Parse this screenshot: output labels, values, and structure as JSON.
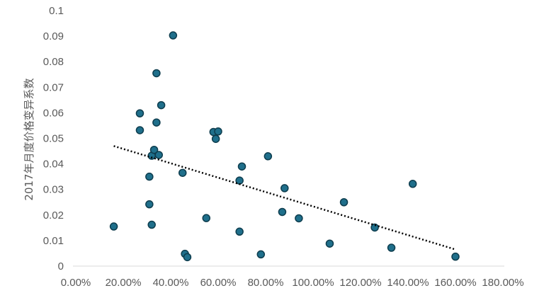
{
  "chart_data": {
    "type": "scatter",
    "title": "",
    "xlabel": "",
    "ylabel": "2017年月度价格变异系数",
    "xlim": [
      0,
      1.8
    ],
    "ylim": [
      0,
      0.1
    ],
    "x_ticks": [
      "0.00%",
      "20.00%",
      "40.00%",
      "60.00%",
      "80.00%",
      "100.00%",
      "120.00%",
      "140.00%",
      "160.00%",
      "180.00%"
    ],
    "y_ticks": [
      "0",
      "0.01",
      "0.02",
      "0.03",
      "0.04",
      "0.05",
      "0.06",
      "0.07",
      "0.08",
      "0.09",
      "0.1"
    ],
    "grid": false,
    "legend": "none",
    "marker_color": "#1f6f8b",
    "marker_edge_color": "#0e3d4e",
    "trendline": {
      "type": "linear",
      "style": "dotted",
      "color": "#000000",
      "x": [
        0.16,
        1.6
      ],
      "y": [
        0.047,
        0.0065
      ]
    },
    "points": [
      {
        "x": 0.16,
        "y": 0.0155
      },
      {
        "x": 0.27,
        "y": 0.0598
      },
      {
        "x": 0.27,
        "y": 0.0532
      },
      {
        "x": 0.31,
        "y": 0.035
      },
      {
        "x": 0.31,
        "y": 0.0242
      },
      {
        "x": 0.32,
        "y": 0.0162
      },
      {
        "x": 0.32,
        "y": 0.0432
      },
      {
        "x": 0.33,
        "y": 0.0455
      },
      {
        "x": 0.34,
        "y": 0.0755
      },
      {
        "x": 0.34,
        "y": 0.0562
      },
      {
        "x": 0.35,
        "y": 0.0435
      },
      {
        "x": 0.36,
        "y": 0.063
      },
      {
        "x": 0.41,
        "y": 0.0903
      },
      {
        "x": 0.45,
        "y": 0.0365
      },
      {
        "x": 0.46,
        "y": 0.0048
      },
      {
        "x": 0.47,
        "y": 0.0035
      },
      {
        "x": 0.55,
        "y": 0.0188
      },
      {
        "x": 0.58,
        "y": 0.0525
      },
      {
        "x": 0.59,
        "y": 0.0498
      },
      {
        "x": 0.6,
        "y": 0.0527
      },
      {
        "x": 0.69,
        "y": 0.0335
      },
      {
        "x": 0.69,
        "y": 0.0135
      },
      {
        "x": 0.7,
        "y": 0.039
      },
      {
        "x": 0.78,
        "y": 0.0046
      },
      {
        "x": 0.81,
        "y": 0.043
      },
      {
        "x": 0.87,
        "y": 0.0212
      },
      {
        "x": 0.88,
        "y": 0.0305
      },
      {
        "x": 0.94,
        "y": 0.0187
      },
      {
        "x": 1.07,
        "y": 0.0088
      },
      {
        "x": 1.13,
        "y": 0.025
      },
      {
        "x": 1.26,
        "y": 0.0151
      },
      {
        "x": 1.33,
        "y": 0.0072
      },
      {
        "x": 1.42,
        "y": 0.0322
      },
      {
        "x": 1.6,
        "y": 0.0037
      }
    ]
  }
}
